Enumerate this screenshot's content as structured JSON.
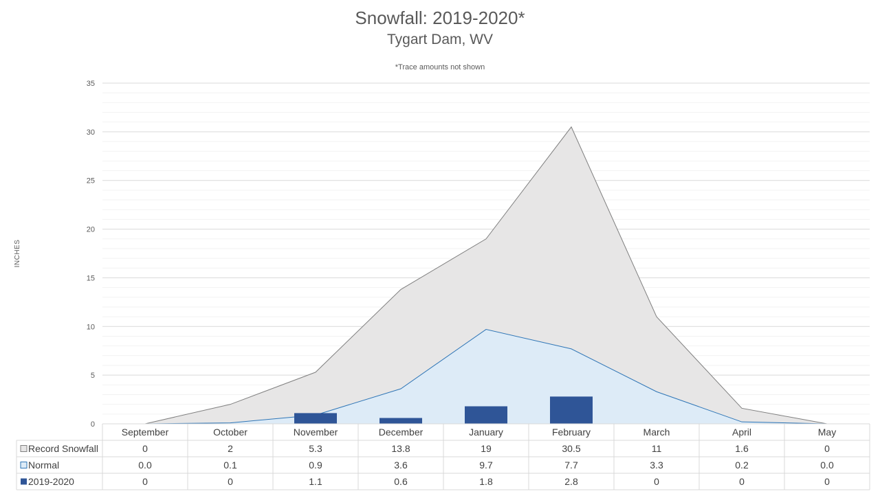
{
  "chart_data": {
    "type": "area",
    "title": "Snowfall: 2019-2020*",
    "subtitle": "Tygart Dam, WV",
    "note": "*Trace amounts not shown",
    "ylabel": "INCHES",
    "ylim": [
      0,
      35
    ],
    "yticks": [
      0,
      5,
      10,
      15,
      20,
      25,
      30,
      35
    ],
    "grid": true,
    "legend": "data-table",
    "categories": [
      "September",
      "October",
      "November",
      "December",
      "January",
      "February",
      "March",
      "April",
      "May"
    ],
    "series": [
      {
        "name": "Record Snowfall",
        "kind": "area",
        "color": "#E7E6E6",
        "line_color": "#7F7F7F",
        "values": [
          0,
          2,
          5.3,
          13.8,
          19,
          30.5,
          11,
          1.6,
          0
        ],
        "labels": [
          "0",
          "2",
          "5.3",
          "13.8",
          "19",
          "30.5",
          "11",
          "1.6",
          "0"
        ]
      },
      {
        "name": "Normal",
        "kind": "area",
        "color": "#DDEBF7",
        "line_color": "#2E75B6",
        "values": [
          0.0,
          0.1,
          0.9,
          3.6,
          9.7,
          7.7,
          3.3,
          0.2,
          0.0
        ],
        "labels": [
          "0.0",
          "0.1",
          "0.9",
          "3.6",
          "9.7",
          "7.7",
          "3.3",
          "0.2",
          "0.0"
        ]
      },
      {
        "name": "2019-2020",
        "kind": "bar",
        "color": "#2F5597",
        "values": [
          0,
          0,
          1.1,
          0.6,
          1.8,
          2.8,
          0,
          0,
          0
        ],
        "labels": [
          "0",
          "0",
          "1.1",
          "0.6",
          "1.8",
          "2.8",
          "0",
          "0",
          "0"
        ]
      }
    ]
  }
}
